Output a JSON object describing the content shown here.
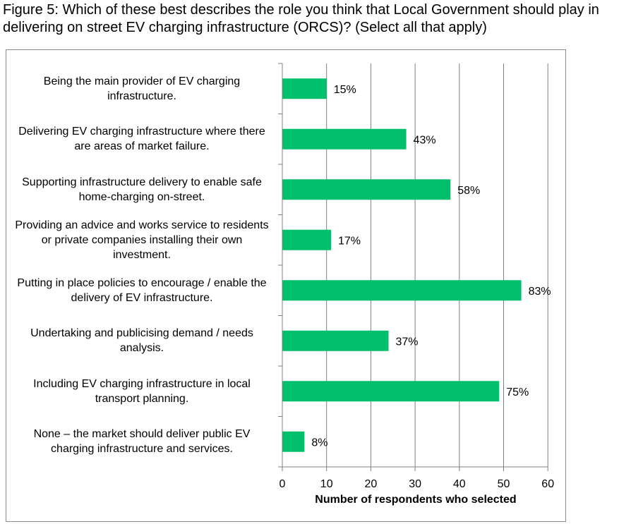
{
  "figure": {
    "title": "Figure 5: Which of these best describes the role you think that Local Government should play in delivering on street EV charging infrastructure (ORCS)? (Select all that apply)"
  },
  "chart_data": {
    "type": "bar",
    "orientation": "horizontal",
    "categories": [
      "Being the main provider of EV charging infrastructure.",
      "Delivering EV charging infrastructure where there are areas of market failure.",
      "Supporting infrastructure delivery to enable safe home-charging on-street.",
      "Providing an advice and works service to residents or private companies installing their own investment.",
      "Putting in place policies to encourage / enable the delivery of EV infrastructure.",
      "Undertaking and publicising demand / needs analysis.",
      "Including EV charging infrastructure in local transport planning.",
      "None – the market should deliver public EV charging infrastructure and services."
    ],
    "values": [
      10,
      28,
      38,
      11,
      54,
      24,
      49,
      5
    ],
    "data_labels": [
      "15%",
      "43%",
      "58%",
      "17%",
      "83%",
      "37%",
      "75%",
      "8%"
    ],
    "xlabel": "Number of respondents who selected",
    "ylabel": "",
    "xlim": [
      0,
      60
    ],
    "xticks": [
      0,
      10,
      20,
      30,
      40,
      50,
      60
    ],
    "grid": "vertical",
    "bar_color": "#00c06b"
  }
}
